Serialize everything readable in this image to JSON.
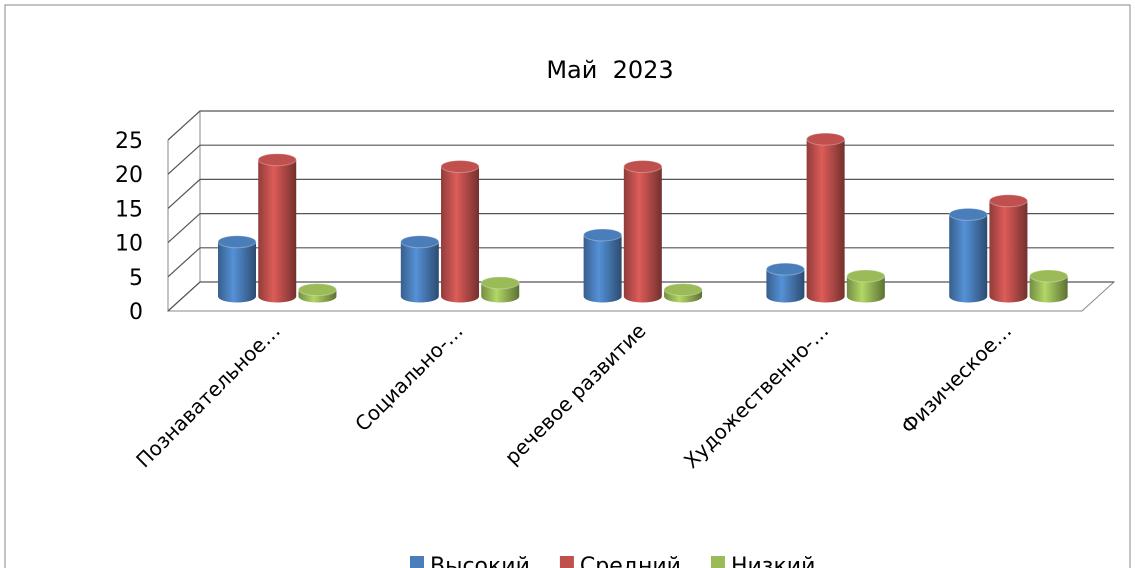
{
  "chart_data": {
    "type": "bar3d",
    "title": "Май  2023",
    "categories": [
      "Познавательное…",
      "Социально-…",
      "речевое развитие",
      "Художественно-…",
      "Физическое…"
    ],
    "series": [
      {
        "name": "Высокий",
        "color": "#4a7ebb",
        "values": [
          8,
          8,
          9,
          4,
          12
        ]
      },
      {
        "name": "Средний",
        "color": "#c0504d",
        "values": [
          20,
          19,
          19,
          23,
          14
        ]
      },
      {
        "name": "Низкий",
        "color": "#9bbb59",
        "values": [
          1,
          2,
          1,
          3,
          3
        ]
      }
    ],
    "ylim": [
      0,
      25
    ],
    "yticks": [
      0,
      5,
      10,
      15,
      20,
      25
    ],
    "grid": true,
    "legend": "bottom"
  }
}
